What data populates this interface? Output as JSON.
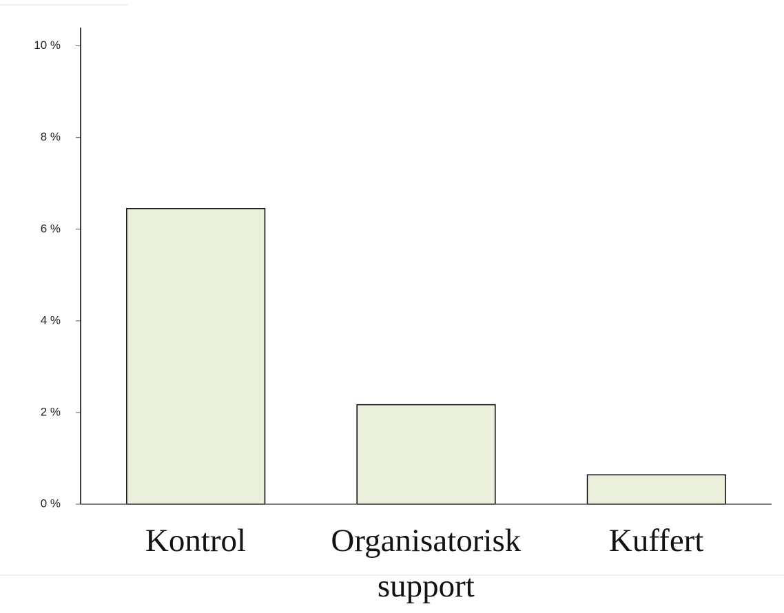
{
  "chart_data": {
    "type": "bar",
    "categories": [
      "Kontrol",
      "Organisatorisk support",
      "Kuffert"
    ],
    "values": [
      6.45,
      2.17,
      0.64
    ],
    "color": "#eaf0dc",
    "ylim": [
      0,
      10.4
    ],
    "yticks": [
      {
        "value": 0,
        "label": "0 %"
      },
      {
        "value": 2,
        "label": "2 %"
      },
      {
        "value": 4,
        "label": "4 %"
      },
      {
        "value": 6,
        "label": "6 %"
      },
      {
        "value": 8,
        "label": "8 %"
      },
      {
        "value": 10,
        "label": "10 %"
      }
    ]
  }
}
